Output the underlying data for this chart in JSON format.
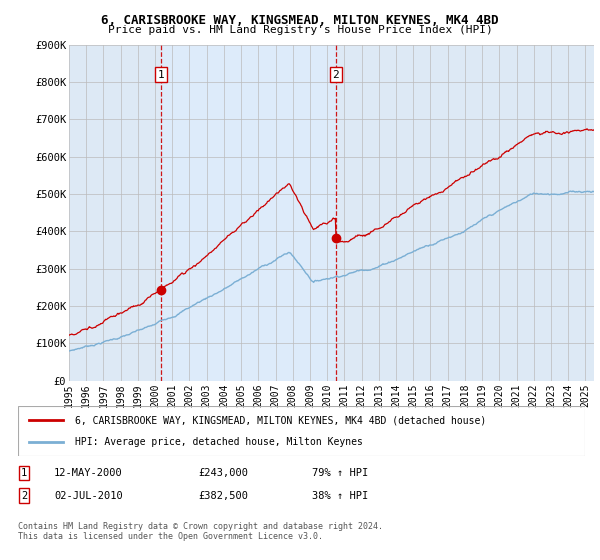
{
  "title1": "6, CARISBROOKE WAY, KINGSMEAD, MILTON KEYNES, MK4 4BD",
  "title2": "Price paid vs. HM Land Registry's House Price Index (HPI)",
  "ylim": [
    0,
    900000
  ],
  "yticks": [
    0,
    100000,
    200000,
    300000,
    400000,
    500000,
    600000,
    700000,
    800000,
    900000
  ],
  "ytick_labels": [
    "£0",
    "£100K",
    "£200K",
    "£300K",
    "£400K",
    "£500K",
    "£600K",
    "£700K",
    "£800K",
    "£900K"
  ],
  "sale1_date_x": 2000.36,
  "sale1_price": 243000,
  "sale2_date_x": 2010.5,
  "sale2_price": 382500,
  "sale1_date_str": "12-MAY-2000",
  "sale1_pct": "79% ↑ HPI",
  "sale2_date_str": "02-JUL-2010",
  "sale2_pct": "38% ↑ HPI",
  "sale1_price_str": "£243,000",
  "sale2_price_str": "£382,500",
  "red_color": "#cc0000",
  "blue_color": "#7bafd4",
  "bg_color": "#dde9f5",
  "bg_between": "#e8f2fc",
  "legend1": "6, CARISBROOKE WAY, KINGSMEAD, MILTON KEYNES, MK4 4BD (detached house)",
  "legend2": "HPI: Average price, detached house, Milton Keynes",
  "footer": "Contains HM Land Registry data © Crown copyright and database right 2024.\nThis data is licensed under the Open Government Licence v3.0.",
  "xmin": 1995,
  "xmax": 2025.5
}
